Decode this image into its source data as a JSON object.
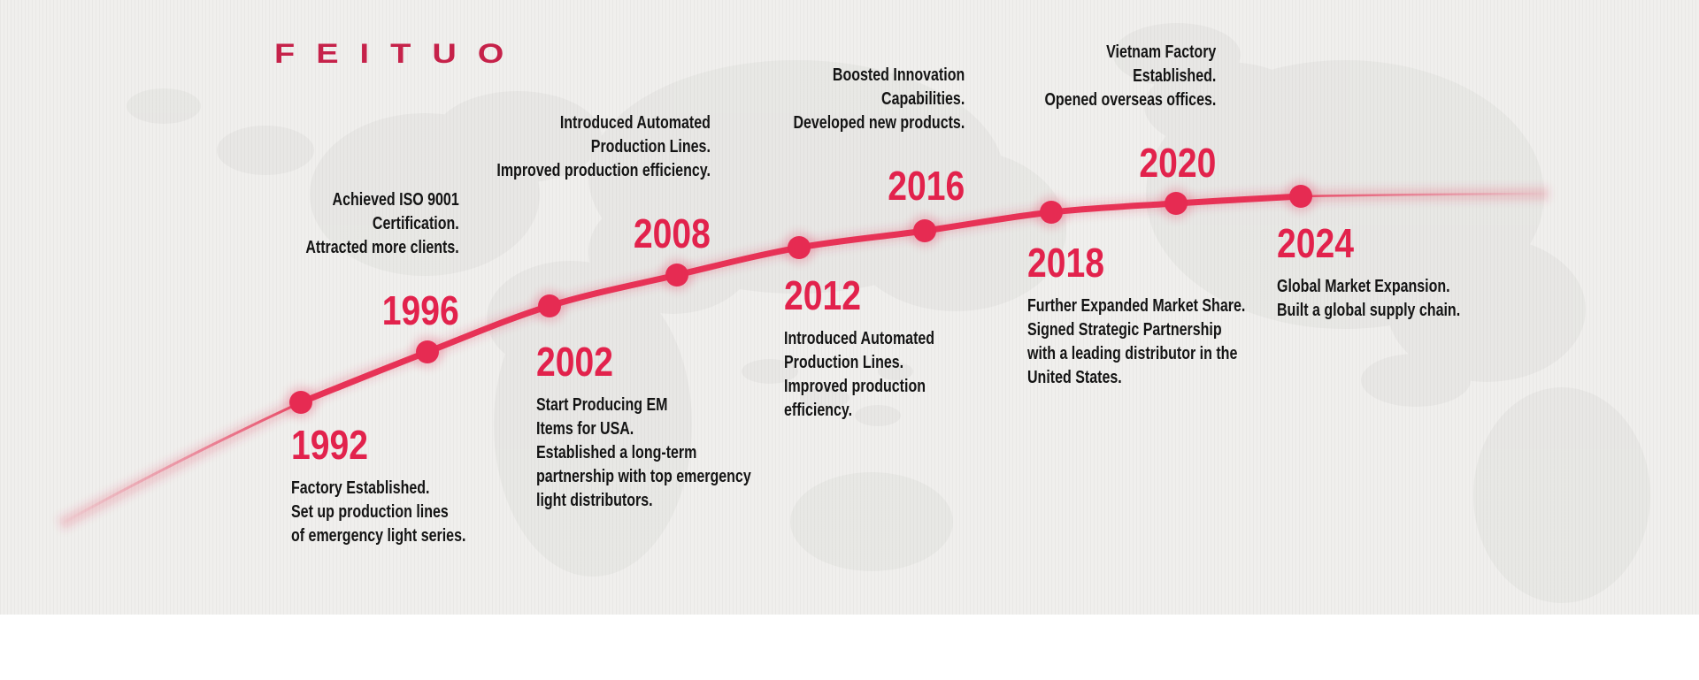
{
  "brand": {
    "logo_text": "FEITUO",
    "logo_color": "#c6224a"
  },
  "colors": {
    "accent_red": "#e2224c",
    "line_red": "#e73256",
    "dot_red": "#e62b52",
    "text_dark": "#141414",
    "background": "#f0efed"
  },
  "timeline": {
    "milestones": [
      {
        "year": "1992",
        "align": "left",
        "year_position": "above",
        "lines": [
          "Factory Established.",
          "Set up production lines",
          "of emergency light series."
        ]
      },
      {
        "year": "1996",
        "align": "right",
        "year_position": "below",
        "lines": [
          "Achieved ISO 9001",
          "Certification.",
          "Attracted more clients."
        ]
      },
      {
        "year": "2002",
        "align": "left",
        "year_position": "above",
        "lines": [
          "Start Producing EM",
          "Items for USA.",
          "Established a long-term",
          "partnership with top emergency",
          "light distributors."
        ]
      },
      {
        "year": "2008",
        "align": "right",
        "year_position": "below",
        "lines": [
          "Introduced Automated",
          "Production Lines.",
          "Improved production efficiency."
        ]
      },
      {
        "year": "2012",
        "align": "left",
        "year_position": "above",
        "lines": [
          "Introduced Automated",
          "Production Lines.",
          "Improved production",
          "efficiency."
        ]
      },
      {
        "year": "2016",
        "align": "right",
        "year_position": "below",
        "lines": [
          "Boosted Innovation",
          "Capabilities.",
          "Developed new products."
        ]
      },
      {
        "year": "2018",
        "align": "left",
        "year_position": "above",
        "lines": [
          "Further Expanded Market Share.",
          "Signed Strategic Partnership",
          "with a leading distributor in the",
          "United States."
        ]
      },
      {
        "year": "2020",
        "align": "right",
        "year_position": "below",
        "lines": [
          "Vietnam Factory",
          "Established.",
          "Opened overseas offices."
        ]
      },
      {
        "year": "2024",
        "align": "left",
        "year_position": "above",
        "lines": [
          "Global Market Expansion.",
          "Built a global supply chain."
        ]
      }
    ]
  }
}
